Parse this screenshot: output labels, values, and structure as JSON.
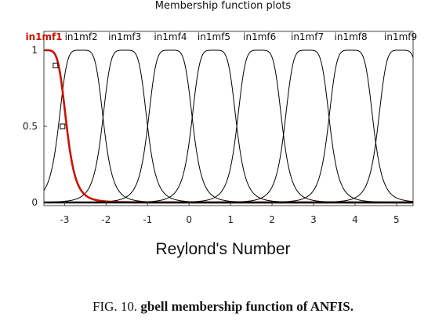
{
  "chart_data": {
    "type": "line",
    "title": "Membership function plots",
    "xlabel": "Reylond's Number",
    "ylabel": "",
    "xlim": [
      -3.5,
      5.4
    ],
    "ylim": [
      0,
      1
    ],
    "x_ticks": [
      -3,
      -2,
      -1,
      0,
      1,
      2,
      3,
      4,
      5
    ],
    "y_ticks": [
      0,
      0.5,
      1
    ],
    "grid": false,
    "function": "gbellmf",
    "series": [
      {
        "name": "in1mf1",
        "a": 0.55,
        "b": 2.5,
        "c": -3.5,
        "color": "#cc1100",
        "selected": true
      },
      {
        "name": "in1mf2",
        "a": 0.55,
        "b": 2.5,
        "c": -2.6,
        "color": "#000000"
      },
      {
        "name": "in1mf3",
        "a": 0.55,
        "b": 2.5,
        "c": -1.55,
        "color": "#000000"
      },
      {
        "name": "in1mf4",
        "a": 0.55,
        "b": 2.5,
        "c": -0.45,
        "color": "#000000"
      },
      {
        "name": "in1mf5",
        "a": 0.55,
        "b": 2.5,
        "c": 0.6,
        "color": "#000000"
      },
      {
        "name": "in1mf6",
        "a": 0.55,
        "b": 2.5,
        "c": 1.7,
        "color": "#000000"
      },
      {
        "name": "in1mf7",
        "a": 0.55,
        "b": 2.5,
        "c": 2.85,
        "color": "#000000"
      },
      {
        "name": "in1mf8",
        "a": 0.55,
        "b": 2.5,
        "c": 3.9,
        "color": "#000000"
      },
      {
        "name": "in1mf9",
        "a": 0.55,
        "b": 2.5,
        "c": 5.1,
        "color": "#000000"
      }
    ],
    "handle_points": [
      {
        "x": -3.22,
        "y": 0.9
      },
      {
        "x": -3.05,
        "y": 0.5
      }
    ]
  },
  "caption": {
    "prefix": "FIG. 10. ",
    "text": "gbell membership function of ANFIS."
  }
}
